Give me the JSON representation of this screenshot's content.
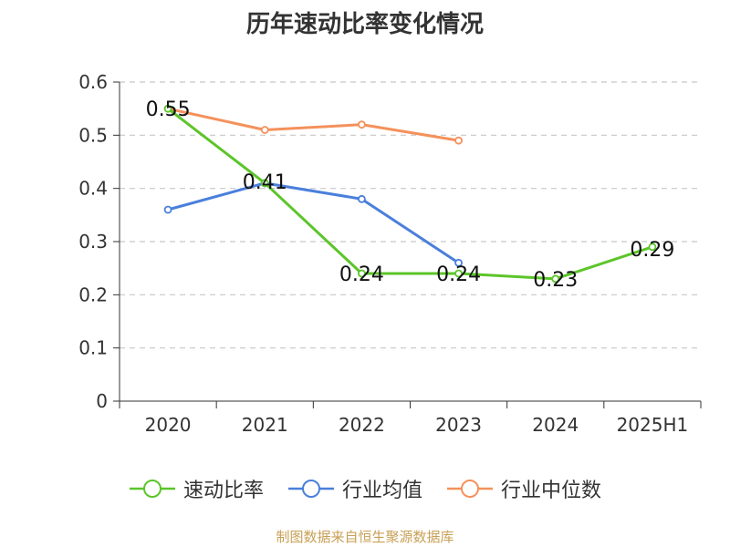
{
  "chart_data": {
    "type": "line",
    "title": "历年速动比率变化情况",
    "categories": [
      "2020",
      "2021",
      "2022",
      "2023",
      "2024",
      "2025H1"
    ],
    "ylim": [
      0,
      0.6
    ],
    "yticks": [
      "0",
      "0.1",
      "0.2",
      "0.3",
      "0.4",
      "0.5",
      "0.6"
    ],
    "grid": true,
    "legend_position": "bottom",
    "series": [
      {
        "name": "速动比率",
        "color": "#5cc52a",
        "values": [
          0.55,
          0.41,
          0.24,
          0.24,
          0.23,
          0.29
        ],
        "labels": [
          "0.55",
          "0.41",
          "0.24",
          "0.24",
          "0.23",
          "0.29"
        ]
      },
      {
        "name": "行业均值",
        "color": "#4a7fdc",
        "values": [
          0.36,
          0.41,
          0.38,
          0.26,
          null,
          null
        ]
      },
      {
        "name": "行业中位数",
        "color": "#f4915b",
        "values": [
          0.55,
          0.51,
          0.52,
          0.49,
          null,
          null
        ]
      }
    ]
  },
  "source": "制图数据来自恒生聚源数据库"
}
